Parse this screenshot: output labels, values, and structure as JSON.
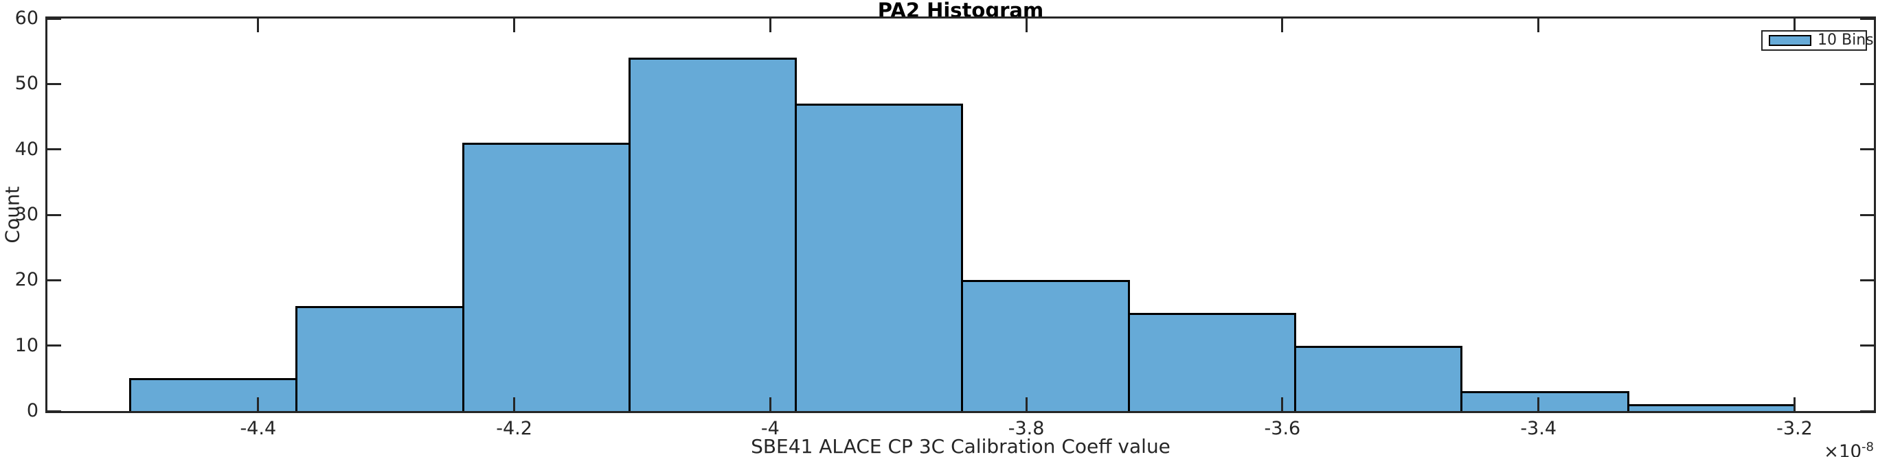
{
  "figure": {
    "title": "PA2 Histogram",
    "xlabel": "SBE41 ALACE CP 3C Calibration Coeff value",
    "ylabel": "Count",
    "legend": {
      "label": "10 Bins"
    },
    "x_multiplier": {
      "prefix": "×10",
      "exponent": "-8"
    }
  },
  "chart_data": {
    "type": "bar",
    "subtype": "histogram",
    "title": "PA2 Histogram",
    "xlabel": "SBE41 ALACE CP 3C Calibration Coeff value",
    "ylabel": "Count",
    "x_scale_factor": "1e-8",
    "bin_edges": [
      -4.5,
      -4.37,
      -4.24,
      -4.11,
      -3.98,
      -3.85,
      -3.72,
      -3.59,
      -3.46,
      -3.33,
      -3.2
    ],
    "counts": [
      5,
      16,
      41,
      54,
      47,
      20,
      15,
      10,
      3,
      1
    ],
    "xlim": [
      -4.5646,
      -3.138
    ],
    "ylim": [
      0,
      60
    ],
    "xticks": [
      -4.4,
      -4.2,
      -4.0,
      -3.8,
      -3.6,
      -3.4,
      -3.2
    ],
    "xtick_labels": [
      "-4.4",
      "-4.2",
      "-4",
      "-3.8",
      "-3.6",
      "-3.4",
      "-3.2"
    ],
    "yticks": [
      0,
      10,
      20,
      30,
      40,
      50,
      60
    ],
    "ytick_labels": [
      "0",
      "10",
      "20",
      "30",
      "40",
      "50",
      "60"
    ],
    "legend_entries": [
      "10 Bins"
    ],
    "legend_position": "northeast",
    "grid": false,
    "box": true,
    "tick_direction": "in",
    "colors": {
      "bar_fill": "#66AAD7",
      "bar_edge": "#000000",
      "axis": "#262626",
      "text": "#262626",
      "title": "#000000"
    }
  }
}
